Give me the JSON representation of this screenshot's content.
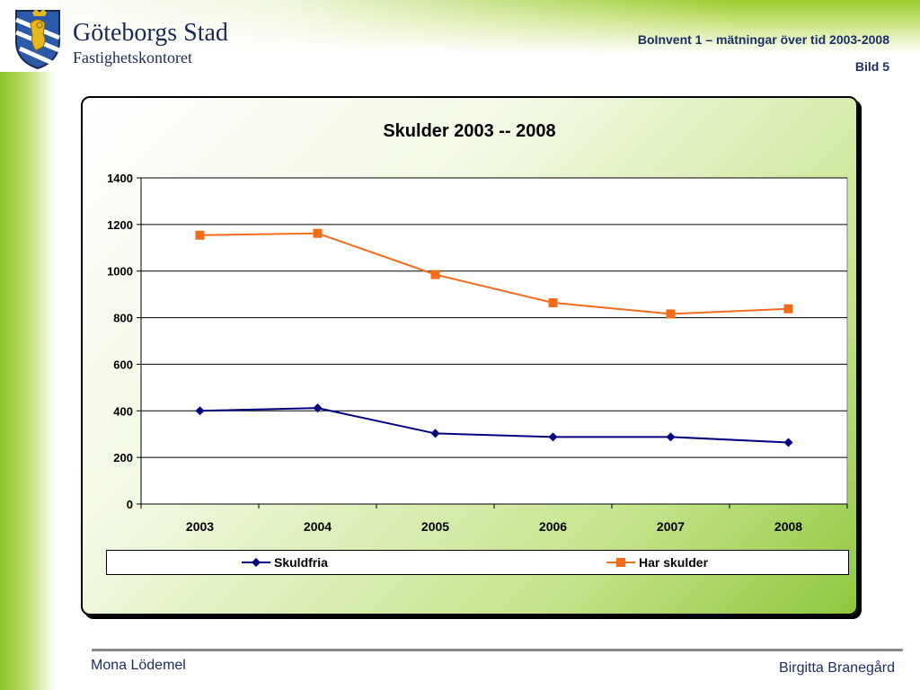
{
  "header": {
    "brand_name": "Göteborgs Stad",
    "brand_sub": "Fastighetskontoret",
    "title": "BoInvent 1 – mätningar över tid 2003-2008",
    "slide_number": "Bild 5"
  },
  "footer": {
    "left": "Mona Lödemel",
    "right": "Birgitta Branegård"
  },
  "colors": {
    "accent_green": "#8cc42a",
    "brand_navy": "#1b2a55",
    "series_skuldfria": "#000080",
    "series_har_skulder": "#f26c1a"
  },
  "chart_data": {
    "type": "line",
    "title": "Skulder 2003 -- 2008",
    "xlabel": "",
    "ylabel": "",
    "categories": [
      "2003",
      "2004",
      "2005",
      "2006",
      "2007",
      "2008"
    ],
    "ylim": [
      0,
      1400
    ],
    "yticks": [
      0,
      200,
      400,
      600,
      800,
      1000,
      1200,
      1400
    ],
    "grid": true,
    "legend_position": "bottom",
    "series": [
      {
        "name": "Skuldfria",
        "values": [
          400,
          412,
          303,
          288,
          288,
          264
        ],
        "marker": "diamond",
        "color": "#000080"
      },
      {
        "name": "Har skulder",
        "values": [
          1154,
          1162,
          985,
          864,
          816,
          838
        ],
        "marker": "square",
        "color": "#f26c1a"
      }
    ]
  }
}
